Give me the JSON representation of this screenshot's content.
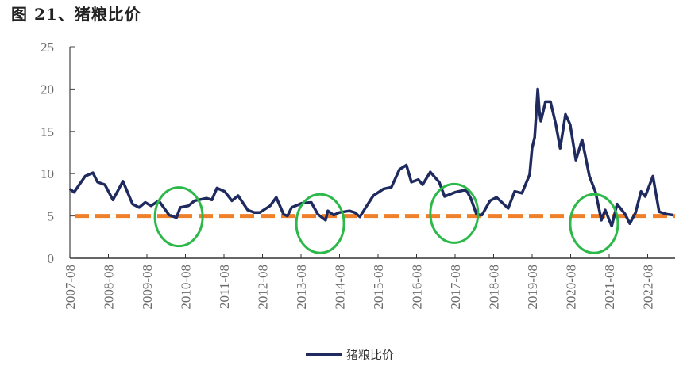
{
  "title": "图 21、猪粮比价",
  "chart_data": {
    "type": "line",
    "title": "图 21、猪粮比价",
    "xlabel": "",
    "ylabel": "",
    "ylim": [
      0,
      25
    ],
    "yticks": [
      0,
      5,
      10,
      15,
      20,
      25
    ],
    "xlim": [
      2007.583,
      2023.3
    ],
    "xtick_labels": [
      "2007-08",
      "2008-08",
      "2009-08",
      "2010-08",
      "2011-08",
      "2012-08",
      "2013-08",
      "2014-08",
      "2015-08",
      "2016-08",
      "2017-08",
      "2018-08",
      "2019-08",
      "2020-08",
      "2021-08",
      "2022-08"
    ],
    "legend": {
      "position": "bottom",
      "entries": [
        "猪粮比价"
      ]
    },
    "series": [
      {
        "name": "猪粮比价",
        "color": "#1f2a5e",
        "x": [
          2007.58,
          2007.69,
          2007.98,
          2008.18,
          2008.3,
          2008.49,
          2008.7,
          2008.96,
          2009.21,
          2009.38,
          2009.54,
          2009.69,
          2009.89,
          2010.16,
          2010.35,
          2010.45,
          2010.66,
          2010.82,
          2011.13,
          2011.27,
          2011.4,
          2011.6,
          2011.79,
          2011.95,
          2012.2,
          2012.37,
          2012.51,
          2012.78,
          2012.94,
          2013.13,
          2013.23,
          2013.34,
          2013.6,
          2013.85,
          2014.02,
          2014.22,
          2014.28,
          2014.43,
          2014.57,
          2014.84,
          2014.98,
          2015.11,
          2015.25,
          2015.46,
          2015.73,
          2015.93,
          2016.14,
          2016.32,
          2016.45,
          2016.63,
          2016.74,
          2016.94,
          2017.17,
          2017.31,
          2017.58,
          2017.87,
          2017.99,
          2018.14,
          2018.28,
          2018.49,
          2018.66,
          2018.8,
          2018.96,
          2019.13,
          2019.32,
          2019.52,
          2019.58,
          2019.65,
          2019.73,
          2019.77,
          2019.81,
          2019.93,
          2020.06,
          2020.2,
          2020.31,
          2020.45,
          2020.57,
          2020.72,
          2020.88,
          2021.07,
          2021.23,
          2021.38,
          2021.48,
          2021.65,
          2021.79,
          2022.0,
          2022.12,
          2022.27,
          2022.41,
          2022.52,
          2022.72,
          2022.88,
          2023.09,
          2023.25
        ],
        "y": [
          8.2,
          7.8,
          9.7,
          10.1,
          9.0,
          8.7,
          6.9,
          9.1,
          6.4,
          6.0,
          6.6,
          6.2,
          6.8,
          5.1,
          4.8,
          6.0,
          6.2,
          6.8,
          7.1,
          6.9,
          8.3,
          7.9,
          6.8,
          7.4,
          5.7,
          5.4,
          5.4,
          6.2,
          7.2,
          5.2,
          5.0,
          6.0,
          6.5,
          6.6,
          5.2,
          4.5,
          5.6,
          5.1,
          5.4,
          5.6,
          5.4,
          4.9,
          5.9,
          7.4,
          8.2,
          8.4,
          10.5,
          11.0,
          9.0,
          9.3,
          8.7,
          10.2,
          9.0,
          7.3,
          7.8,
          8.1,
          7.1,
          5.2,
          5.1,
          6.8,
          7.2,
          6.6,
          5.9,
          7.9,
          7.7,
          9.9,
          13.0,
          14.3,
          20.0,
          17.4,
          16.2,
          18.5,
          18.5,
          15.8,
          13.0,
          17.0,
          15.8,
          11.6,
          14.0,
          9.7,
          7.8,
          4.5,
          5.7,
          3.8,
          6.4,
          5.2,
          4.1,
          5.4,
          7.9,
          7.3,
          9.7,
          5.5,
          5.2,
          5.1
        ]
      }
    ],
    "reference_line": {
      "value": 5,
      "color": "#f07f2a",
      "style": "dashed"
    },
    "annotations": [
      {
        "type": "circle",
        "center": [
          2010.41,
          4.9
        ],
        "color": "#2db84a"
      },
      {
        "type": "circle",
        "center": [
          2014.08,
          4.1
        ],
        "color": "#2db84a"
      },
      {
        "type": "circle",
        "center": [
          2017.56,
          5.3
        ],
        "color": "#2db84a"
      },
      {
        "type": "circle",
        "center": [
          2021.19,
          4.1
        ],
        "color": "#2db84a"
      }
    ]
  }
}
